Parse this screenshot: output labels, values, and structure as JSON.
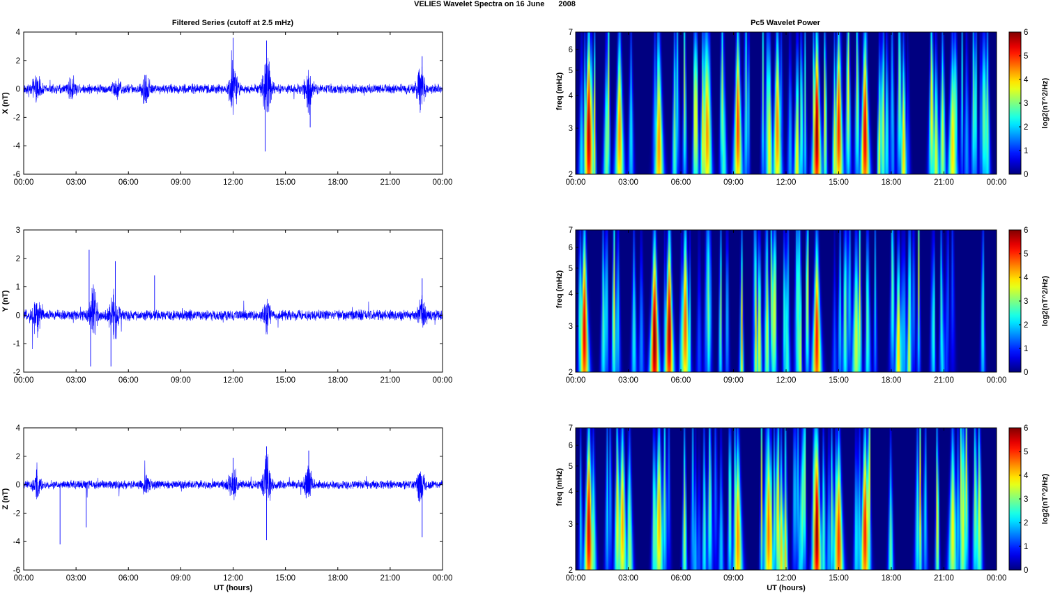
{
  "figure": {
    "title": "VELIES Wavelet Spectra on 16 June",
    "title_year": "2008"
  },
  "columns": {
    "left_title": "Filtered Series (cutoff at 2.5 mHz)",
    "right_title": "Pc5 Wavelet Power"
  },
  "colors": {
    "series_line": "#0000ff",
    "colormap": "jet",
    "axes": "#000000"
  },
  "chart_data": [
    {
      "type": "line",
      "title": "",
      "xlabel": "",
      "ylabel": "X (nT)",
      "xlim": [
        "00:00",
        "00:00"
      ],
      "x_ticks": [
        "00:00",
        "03:00",
        "06:00",
        "09:00",
        "12:00",
        "15:00",
        "18:00",
        "21:00",
        "00:00"
      ],
      "ylim": [
        -6,
        4
      ],
      "y_ticks": [
        -6,
        -4,
        -2,
        0,
        2,
        4
      ],
      "series": [
        {
          "baseline_amplitude_nT": 0.28,
          "bursts": [
            {
              "t": "00:45",
              "amp": 1.4
            },
            {
              "t": "02:45",
              "amp": 1.0
            },
            {
              "t": "05:20",
              "amp": 0.9
            },
            {
              "t": "07:00",
              "amp": 1.5
            },
            {
              "t": "12:00",
              "amp": 2.6
            },
            {
              "t": "13:55",
              "amp": 3.8
            },
            {
              "t": "16:20",
              "amp": 2.0
            },
            {
              "t": "22:45",
              "amp": 2.2
            }
          ],
          "extremes": [
            {
              "t": "12:00",
              "value": 3.6
            },
            {
              "t": "13:50",
              "value": -4.4
            },
            {
              "t": "13:55",
              "value": 3.4
            },
            {
              "t": "16:25",
              "value": -2.7
            },
            {
              "t": "22:50",
              "value": 2.3
            }
          ]
        }
      ]
    },
    {
      "type": "heatmap",
      "title": "",
      "xlabel": "",
      "ylabel": "freq (mHz)",
      "yscale": "log",
      "ylim": [
        2,
        7
      ],
      "y_ticks": [
        2,
        3,
        4,
        5,
        6,
        7
      ],
      "x_ticks": [
        "00:00",
        "03:00",
        "06:00",
        "09:00",
        "12:00",
        "15:00",
        "18:00",
        "21:00",
        "00:00"
      ],
      "colorbar": {
        "label": "log2(nT^2/Hz)",
        "range": [
          0,
          6
        ],
        "ticks": [
          0,
          1,
          2,
          3,
          4,
          5,
          6
        ]
      },
      "hotspots": [
        {
          "t": "00:45",
          "power": 5.8
        },
        {
          "t": "02:30",
          "power": 4.5
        },
        {
          "t": "04:45",
          "power": 4.5
        },
        {
          "t": "07:30",
          "power": 4.5
        },
        {
          "t": "09:15",
          "power": 5.0
        },
        {
          "t": "11:30",
          "power": 4.6
        },
        {
          "t": "13:45",
          "power": 6.0
        },
        {
          "t": "15:00",
          "power": 5.2
        },
        {
          "t": "16:30",
          "power": 5.5
        },
        {
          "t": "21:30",
          "power": 4.0
        }
      ]
    },
    {
      "type": "line",
      "title": "",
      "xlabel": "",
      "ylabel": "Y (nT)",
      "x_ticks": [
        "00:00",
        "03:00",
        "06:00",
        "09:00",
        "12:00",
        "15:00",
        "18:00",
        "21:00",
        "00:00"
      ],
      "ylim": [
        -2,
        3
      ],
      "y_ticks": [
        -2,
        -1,
        0,
        1,
        2,
        3
      ],
      "series": [
        {
          "baseline_amplitude_nT": 0.15,
          "bursts": [
            {
              "t": "00:45",
              "amp": 0.9
            },
            {
              "t": "04:00",
              "amp": 1.4
            },
            {
              "t": "05:10",
              "amp": 1.6
            },
            {
              "t": "13:55",
              "amp": 0.8
            },
            {
              "t": "22:50",
              "amp": 0.9
            }
          ],
          "extremes": [
            {
              "t": "03:45",
              "value": 2.3
            },
            {
              "t": "03:50",
              "value": -1.8
            },
            {
              "t": "05:15",
              "value": 1.9
            },
            {
              "t": "05:00",
              "value": -1.8
            },
            {
              "t": "07:30",
              "value": 1.4
            },
            {
              "t": "22:50",
              "value": 1.3
            }
          ]
        }
      ]
    },
    {
      "type": "heatmap",
      "title": "",
      "xlabel": "",
      "ylabel": "freq (mHz)",
      "yscale": "log",
      "ylim": [
        2,
        7
      ],
      "y_ticks": [
        2,
        3,
        4,
        5,
        6,
        7
      ],
      "x_ticks": [
        "00:00",
        "03:00",
        "06:00",
        "09:00",
        "12:00",
        "15:00",
        "18:00",
        "21:00",
        "00:00"
      ],
      "colorbar": {
        "label": "log2(nT^2/Hz)",
        "range": [
          0,
          6
        ],
        "ticks": [
          0,
          1,
          2,
          3,
          4,
          5,
          6
        ]
      },
      "hotspots": [
        {
          "t": "00:30",
          "power": 5.5
        },
        {
          "t": "04:30",
          "power": 6.0
        },
        {
          "t": "05:20",
          "power": 5.8
        },
        {
          "t": "06:15",
          "power": 4.8
        },
        {
          "t": "13:45",
          "power": 5.2
        },
        {
          "t": "16:00",
          "power": 3.5
        }
      ]
    },
    {
      "type": "line",
      "title": "",
      "xlabel": "UT (hours)",
      "ylabel": "Z (nT)",
      "x_ticks": [
        "00:00",
        "03:00",
        "06:00",
        "09:00",
        "12:00",
        "15:00",
        "18:00",
        "21:00",
        "00:00"
      ],
      "ylim": [
        -6,
        4
      ],
      "y_ticks": [
        -6,
        -4,
        -2,
        0,
        2,
        4
      ],
      "series": [
        {
          "baseline_amplitude_nT": 0.25,
          "bursts": [
            {
              "t": "00:45",
              "amp": 1.2
            },
            {
              "t": "07:00",
              "amp": 1.0
            },
            {
              "t": "12:00",
              "amp": 1.8
            },
            {
              "t": "13:55",
              "amp": 2.8
            },
            {
              "t": "16:20",
              "amp": 2.0
            },
            {
              "t": "22:45",
              "amp": 1.6
            }
          ],
          "extremes": [
            {
              "t": "02:05",
              "value": -4.2
            },
            {
              "t": "03:35",
              "value": -3.0
            },
            {
              "t": "12:00",
              "value": 1.9
            },
            {
              "t": "13:55",
              "value": 2.7
            },
            {
              "t": "13:55",
              "value": -3.9
            },
            {
              "t": "16:20",
              "value": 2.4
            },
            {
              "t": "22:50",
              "value": -3.7
            }
          ]
        }
      ]
    },
    {
      "type": "heatmap",
      "title": "",
      "xlabel": "UT (hours)",
      "ylabel": "freq (mHz)",
      "yscale": "log",
      "ylim": [
        2,
        7
      ],
      "y_ticks": [
        2,
        3,
        4,
        5,
        6,
        7
      ],
      "x_ticks": [
        "00:00",
        "03:00",
        "06:00",
        "09:00",
        "12:00",
        "15:00",
        "18:00",
        "21:00",
        "00:00"
      ],
      "colorbar": {
        "label": "log2(nT^2/Hz)",
        "range": [
          0,
          6
        ],
        "ticks": [
          0,
          1,
          2,
          3,
          4,
          5,
          6
        ]
      },
      "hotspots": [
        {
          "t": "00:45",
          "power": 5.6
        },
        {
          "t": "02:40",
          "power": 4.3
        },
        {
          "t": "04:45",
          "power": 4.3
        },
        {
          "t": "09:15",
          "power": 4.5
        },
        {
          "t": "11:00",
          "power": 4.7
        },
        {
          "t": "13:45",
          "power": 6.0
        },
        {
          "t": "15:00",
          "power": 5.0
        },
        {
          "t": "16:30",
          "power": 5.2
        },
        {
          "t": "21:30",
          "power": 3.8
        }
      ]
    }
  ]
}
